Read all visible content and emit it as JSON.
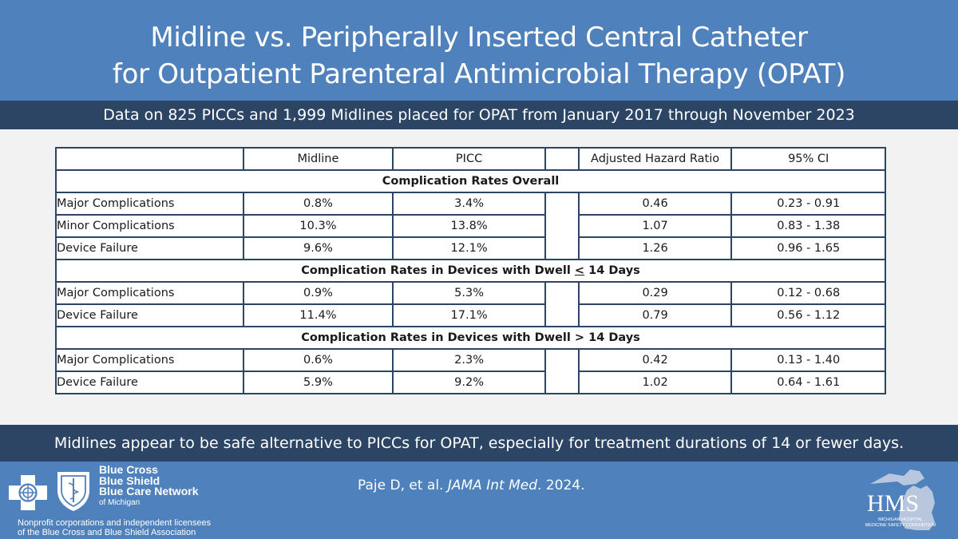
{
  "title": {
    "line1": "Midline vs. Peripherally Inserted Central Catheter",
    "line2": "for Outpatient Parenteral Antimicrobial Therapy (OPAT)"
  },
  "subtitle": "Data on 825 PICCs and 1,999 Midlines placed for OPAT from January 2017 through November 2023",
  "table": {
    "headers": {
      "midline": "Midline",
      "picc": "PICC",
      "ahr": "Adjusted Hazard Ratio",
      "ci": "95% CI"
    },
    "section1": {
      "title": "Complication Rates Overall",
      "rows": [
        {
          "label": "Major Complications",
          "midline": "0.8%",
          "picc": "3.4%",
          "ahr": "0.46",
          "ci": "0.23 - 0.91"
        },
        {
          "label": "Minor Complications",
          "midline": "10.3%",
          "picc": "13.8%",
          "ahr": "1.07",
          "ci": "0.83 - 1.38"
        },
        {
          "label": "Device Failure",
          "midline": "9.6%",
          "picc": "12.1%",
          "ahr": "1.26",
          "ci": "0.96 - 1.65"
        }
      ]
    },
    "section2": {
      "title_prefix": "Complication Rates in Devices with Dwell",
      "title_symbol": "<",
      "title_suffix": "14 Days",
      "rows": [
        {
          "label": "Major Complications",
          "midline": "0.9%",
          "picc": "5.3%",
          "ahr": "0.29",
          "ci": "0.12 - 0.68"
        },
        {
          "label": "Device Failure",
          "midline": "11.4%",
          "picc": "17.1%",
          "ahr": "0.79",
          "ci": "0.56 - 1.12"
        }
      ]
    },
    "section3": {
      "title": "Complication Rates in Devices with Dwell > 14 Days",
      "rows": [
        {
          "label": "Major Complications",
          "midline": "0.6%",
          "picc": "2.3%",
          "ahr": "0.42",
          "ci": "0.13 - 1.40"
        },
        {
          "label": "Device Failure",
          "midline": "5.9%",
          "picc": "9.2%",
          "ahr": "1.02",
          "ci": "0.64 - 1.61"
        }
      ]
    }
  },
  "conclusion": "Midlines appear to be safe alternative to PICCs for OPAT, especially for treatment durations of 14 or fewer days.",
  "footer": {
    "bc_line1": "Blue Cross",
    "bc_line2": "Blue Shield",
    "bc_line3": "Blue Care Network",
    "bc_state": "of Michigan",
    "note_line1": "Nonprofit corporations and independent licensees",
    "note_line2": "of the Blue Cross and Blue Shield Association",
    "citation_authors": "Paje D, et al. ",
    "citation_journal": "JAMA Int Med",
    "citation_year": ". 2024.",
    "hms_logo_text": "HMS",
    "hms_logo_sub1": "MICHIGAN HOSPITAL",
    "hms_logo_sub2": "MEDICINE SAFETY CONSORTIUM"
  },
  "colors": {
    "blue": "#4f81bd",
    "navy": "#2d4565",
    "orange": "#f4813f",
    "light_gray": "#f2f2f2"
  }
}
